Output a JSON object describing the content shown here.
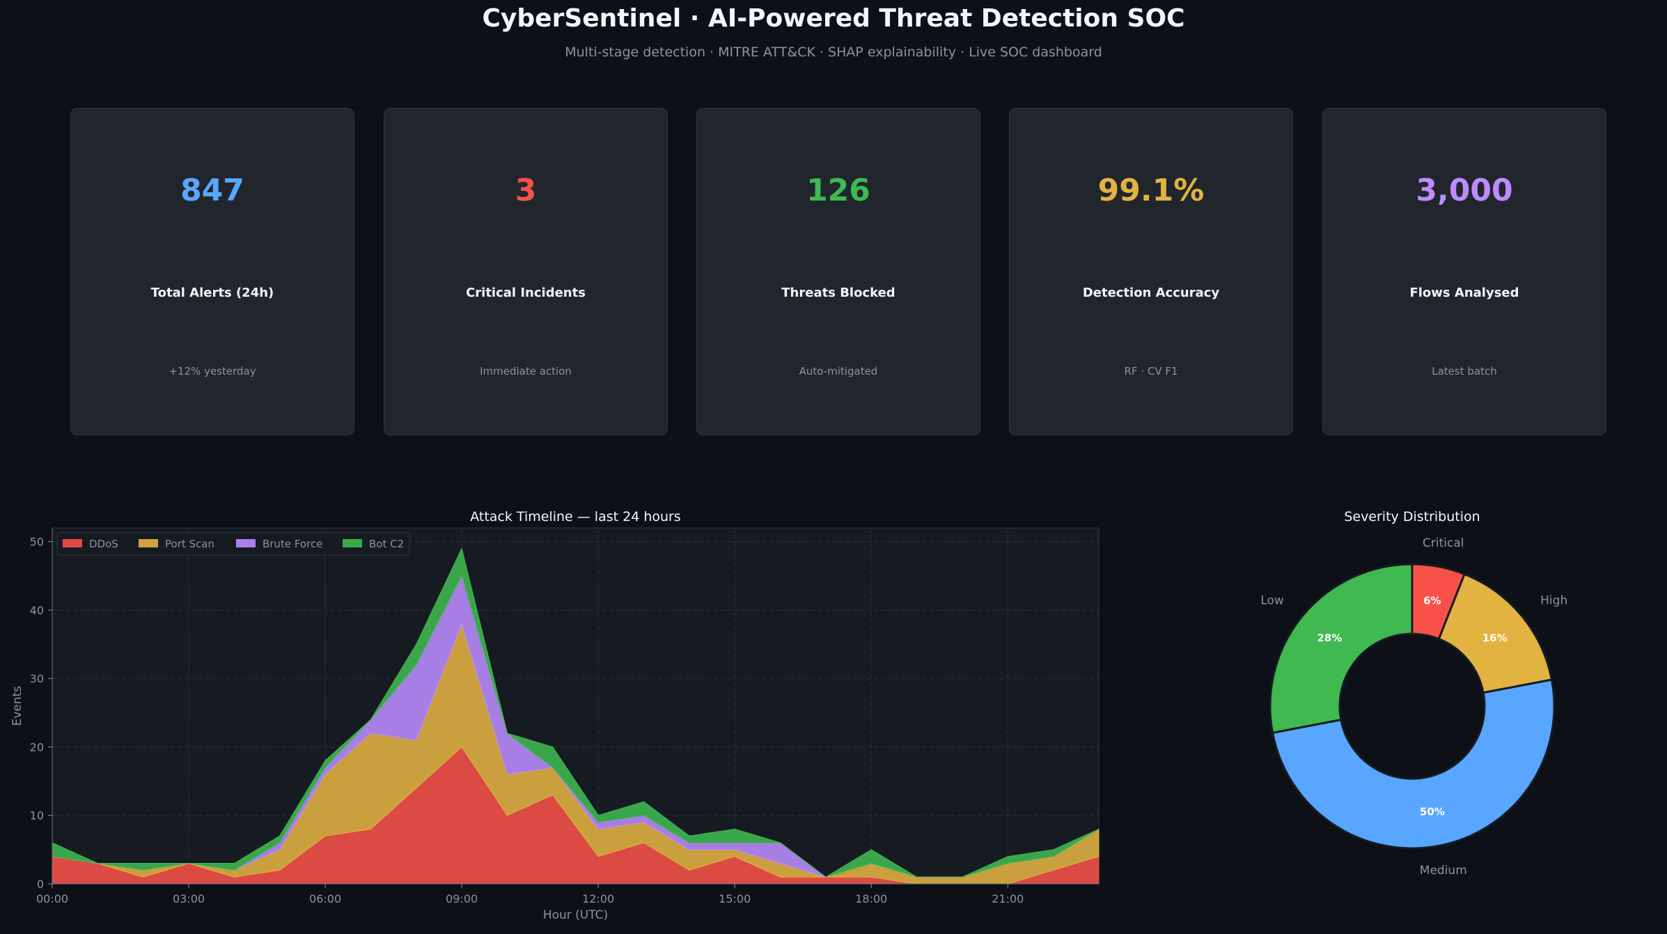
{
  "header": {
    "title": "CyberSentinel  ·  AI-Powered Threat Detection SOC",
    "subtitle": "Multi-stage detection  ·  MITRE ATT&CK  ·  SHAP explainability  ·  Live SOC dashboard"
  },
  "kpis": [
    {
      "value": "847",
      "label": "Total Alerts (24h)",
      "sub": "+12% yesterday",
      "color": "#58a6ff"
    },
    {
      "value": "3",
      "label": "Critical Incidents",
      "sub": "Immediate action",
      "color": "#f85149"
    },
    {
      "value": "126",
      "label": "Threats Blocked",
      "sub": "Auto-mitigated",
      "color": "#3fb950"
    },
    {
      "value": "99.1%",
      "label": "Detection Accuracy",
      "sub": "RF · CV F1",
      "color": "#e3b341"
    },
    {
      "value": "3,000",
      "label": "Flows Analysed",
      "sub": "Latest batch",
      "color": "#bc8cff"
    }
  ],
  "chart_data": [
    {
      "type": "area",
      "stacked": true,
      "title": "Attack Timeline — last 24 hours",
      "xlabel": "Hour (UTC)",
      "ylabel": "Events",
      "x": [
        0,
        1,
        2,
        3,
        4,
        5,
        6,
        7,
        8,
        9,
        10,
        11,
        12,
        13,
        14,
        15,
        16,
        17,
        18,
        19,
        20,
        21,
        22,
        23
      ],
      "xlim": [
        0,
        23
      ],
      "ylim": [
        0,
        52
      ],
      "xticks": [
        0,
        3,
        6,
        9,
        12,
        15,
        18,
        21
      ],
      "xtick_labels": [
        "00:00",
        "03:00",
        "06:00",
        "09:00",
        "12:00",
        "15:00",
        "18:00",
        "21:00"
      ],
      "yticks": [
        0,
        10,
        20,
        30,
        40,
        50
      ],
      "ytick_labels": [
        "0",
        "10",
        "20",
        "30",
        "40",
        "50"
      ],
      "grid": true,
      "legend_position": "top-left",
      "series": [
        {
          "name": "DDoS",
          "color": "#f85149",
          "values": [
            4,
            3,
            1,
            3,
            1,
            2,
            7,
            8,
            14,
            20,
            10,
            13,
            4,
            6,
            2,
            4,
            1,
            1,
            1,
            0,
            0,
            0,
            2,
            4
          ]
        },
        {
          "name": "Port Scan",
          "color": "#e3b341",
          "values": [
            0,
            0,
            1,
            0,
            1,
            3,
            9,
            14,
            7,
            18,
            6,
            4,
            4,
            3,
            3,
            1,
            2,
            0,
            2,
            1,
            1,
            3,
            2,
            4
          ]
        },
        {
          "name": "Brute Force",
          "color": "#bc8cff",
          "values": [
            0,
            0,
            0,
            0,
            0,
            1,
            1,
            2,
            11,
            7,
            6,
            0,
            1,
            1,
            1,
            1,
            3,
            0,
            0,
            0,
            0,
            0,
            0,
            0
          ]
        },
        {
          "name": "Bot C2",
          "color": "#3fb950",
          "values": [
            2,
            0,
            1,
            0,
            1,
            1,
            1,
            0,
            3,
            4,
            0,
            3,
            1,
            2,
            1,
            2,
            0,
            0,
            2,
            0,
            0,
            1,
            1,
            0
          ]
        }
      ]
    },
    {
      "type": "pie",
      "donut": true,
      "title": "Severity Distribution",
      "slices": [
        {
          "label": "Low",
          "value": 28,
          "pct_label": "28%",
          "color": "#3fb950"
        },
        {
          "label": "Medium",
          "value": 50,
          "pct_label": "50%",
          "color": "#58a6ff"
        },
        {
          "label": "High",
          "value": 16,
          "pct_label": "16%",
          "color": "#e3b341"
        },
        {
          "label": "Critical",
          "value": 6,
          "pct_label": "6%",
          "color": "#f85149"
        }
      ]
    }
  ]
}
